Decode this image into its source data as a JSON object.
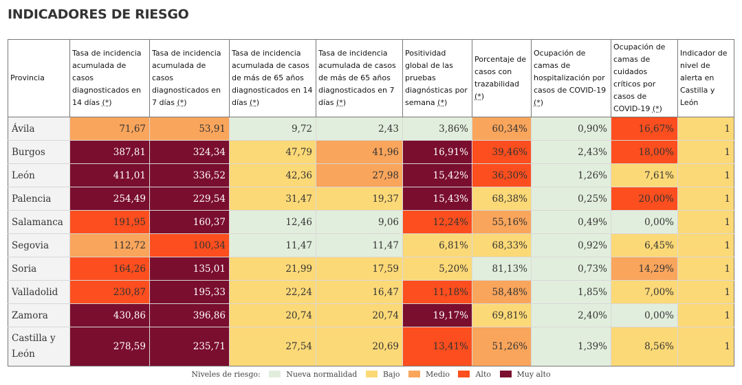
{
  "title": "INDICADORES DE RIESGO",
  "colors": {
    "nueva": "#e2eedd",
    "bajo": "#fcd977",
    "medio": "#f9a55c",
    "alto": "#fc4e1e",
    "muy_alto": "#7a0e2e"
  },
  "headers": [
    {
      "text": "Provincia",
      "note": ""
    },
    {
      "text": "Tasa de incidencia acumulada de casos diagnosticados en 14 días",
      "note": "(*)"
    },
    {
      "text": "Tasa de incidencia acumulada de casos diagnosticados en 7 días",
      "note": "(*)"
    },
    {
      "text": "Tasa de incidencia acumulada de casos de más de 65 años diagnosticados en 14 días",
      "note": "(*)"
    },
    {
      "text": "Tasa de incidencia acumulada de casos de más de 65 años diagnosticados en 7 días",
      "note": "(*)"
    },
    {
      "text": "Positividad global de las pruebas diagnósticas por semana",
      "note": "(*)"
    },
    {
      "text": "Porcentaje de casos con trazabilidad",
      "note": "(*)"
    },
    {
      "text": "Ocupación de camas de hospitalización por casos de COVID-19",
      "note": "(*)"
    },
    {
      "text": "Ocupación de camas de cuidados críticos por casos de COVID-19",
      "note": "(*)"
    },
    {
      "text": "Indicador de nivel de alerta en Castilla y León",
      "note": ""
    }
  ],
  "legend": {
    "label": "Niveles de riesgo:",
    "items": [
      {
        "key": "nueva",
        "label": "Nueva normalidad"
      },
      {
        "key": "bajo",
        "label": "Bajo"
      },
      {
        "key": "medio",
        "label": "Medio"
      },
      {
        "key": "alto",
        "label": "Alto"
      },
      {
        "key": "muy_alto",
        "label": "Muy alto"
      }
    ]
  },
  "chart_data": {
    "type": "table",
    "title": "INDICADORES DE RIESGO",
    "rows": [
      {
        "provincia": "Ávila",
        "values": [
          "71,67",
          "53,91",
          "9,72",
          "2,43",
          "3,86%",
          "60,34%",
          "0,90%",
          "16,67%",
          "1"
        ],
        "levels": [
          "medio",
          "medio",
          "nueva",
          "nueva",
          "nueva",
          "medio",
          "nueva",
          "alto",
          "bajo"
        ]
      },
      {
        "provincia": "Burgos",
        "values": [
          "387,81",
          "324,34",
          "47,79",
          "41,96",
          "16,91%",
          "39,46%",
          "2,43%",
          "18,00%",
          "1"
        ],
        "levels": [
          "muy_alto",
          "muy_alto",
          "bajo",
          "medio",
          "muy_alto",
          "alto",
          "nueva",
          "alto",
          "bajo"
        ]
      },
      {
        "provincia": "León",
        "values": [
          "411,01",
          "336,52",
          "42,36",
          "27,98",
          "15,42%",
          "36,30%",
          "1,26%",
          "7,61%",
          "1"
        ],
        "levels": [
          "muy_alto",
          "muy_alto",
          "bajo",
          "medio",
          "muy_alto",
          "alto",
          "nueva",
          "bajo",
          "bajo"
        ]
      },
      {
        "provincia": "Palencia",
        "values": [
          "254,49",
          "229,54",
          "31,47",
          "19,37",
          "15,43%",
          "68,38%",
          "0,25%",
          "20,00%",
          "1"
        ],
        "levels": [
          "muy_alto",
          "muy_alto",
          "bajo",
          "bajo",
          "muy_alto",
          "bajo",
          "nueva",
          "alto",
          "bajo"
        ]
      },
      {
        "provincia": "Salamanca",
        "values": [
          "191,95",
          "160,37",
          "12,46",
          "9,06",
          "12,24%",
          "55,16%",
          "0,49%",
          "0,00%",
          "1"
        ],
        "levels": [
          "alto",
          "muy_alto",
          "nueva",
          "nueva",
          "alto",
          "medio",
          "nueva",
          "nueva",
          "bajo"
        ]
      },
      {
        "provincia": "Segovia",
        "values": [
          "112,72",
          "100,34",
          "11,47",
          "11,47",
          "6,81%",
          "68,33%",
          "0,92%",
          "6,45%",
          "1"
        ],
        "levels": [
          "medio",
          "alto",
          "nueva",
          "nueva",
          "bajo",
          "bajo",
          "nueva",
          "bajo",
          "bajo"
        ]
      },
      {
        "provincia": "Soria",
        "values": [
          "164,26",
          "135,01",
          "21,99",
          "17,59",
          "5,20%",
          "81,13%",
          "0,73%",
          "14,29%",
          "1"
        ],
        "levels": [
          "alto",
          "muy_alto",
          "bajo",
          "bajo",
          "bajo",
          "nueva",
          "nueva",
          "medio",
          "bajo"
        ]
      },
      {
        "provincia": "Valladolid",
        "values": [
          "230,87",
          "195,33",
          "22,24",
          "16,47",
          "11,18%",
          "58,48%",
          "1,85%",
          "7,00%",
          "1"
        ],
        "levels": [
          "alto",
          "muy_alto",
          "bajo",
          "bajo",
          "alto",
          "medio",
          "nueva",
          "bajo",
          "bajo"
        ]
      },
      {
        "provincia": "Zamora",
        "values": [
          "430,86",
          "396,86",
          "20,74",
          "20,74",
          "19,17%",
          "69,81%",
          "2,40%",
          "0,00%",
          "1"
        ],
        "levels": [
          "muy_alto",
          "muy_alto",
          "bajo",
          "bajo",
          "muy_alto",
          "bajo",
          "nueva",
          "nueva",
          "bajo"
        ]
      },
      {
        "provincia": "Castilla y León",
        "values": [
          "278,59",
          "235,71",
          "27,54",
          "20,69",
          "13,41%",
          "51,26%",
          "1,39%",
          "8,56%",
          "1"
        ],
        "levels": [
          "muy_alto",
          "muy_alto",
          "bajo",
          "bajo",
          "alto",
          "medio",
          "nueva",
          "bajo",
          "bajo"
        ]
      }
    ]
  }
}
